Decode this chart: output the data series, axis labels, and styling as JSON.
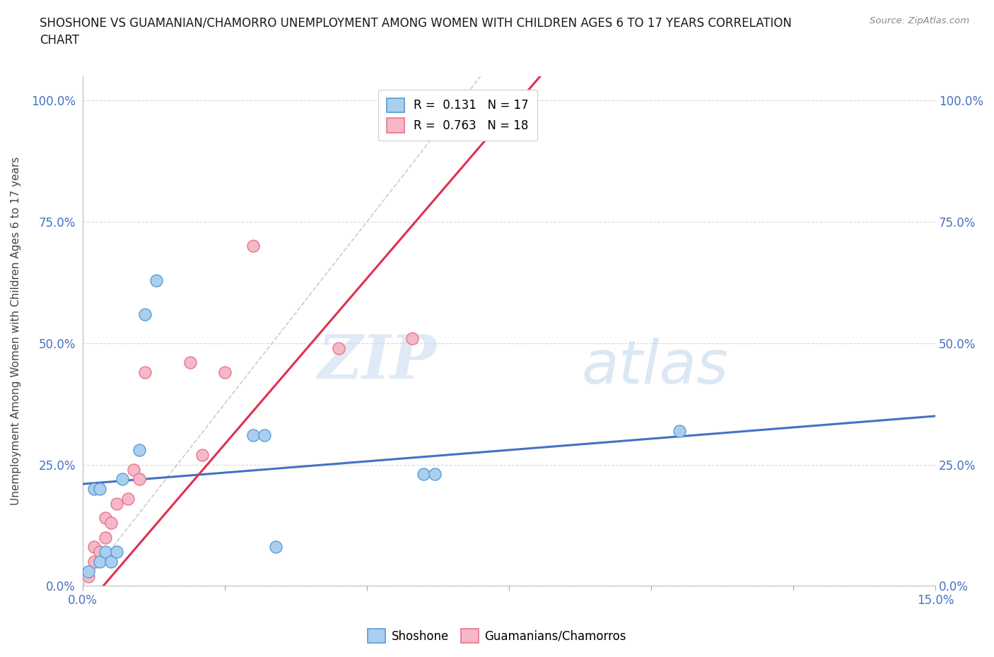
{
  "title": "SHOSHONE VS GUAMANIAN/CHAMORRO UNEMPLOYMENT AMONG WOMEN WITH CHILDREN AGES 6 TO 17 YEARS CORRELATION\nCHART",
  "source": "Source: ZipAtlas.com",
  "ylabel": "Unemployment Among Women with Children Ages 6 to 17 years",
  "xlim": [
    0.0,
    0.15
  ],
  "ylim": [
    0.0,
    1.05
  ],
  "x_ticks": [
    0.0,
    0.025,
    0.05,
    0.075,
    0.1,
    0.125,
    0.15
  ],
  "x_tick_labels": [
    "0.0%",
    "",
    "",
    "",
    "",
    "",
    "15.0%"
  ],
  "y_ticks": [
    0.0,
    0.25,
    0.5,
    0.75,
    1.0
  ],
  "y_tick_labels": [
    "0.0%",
    "25.0%",
    "50.0%",
    "75.0%",
    "100.0%"
  ],
  "shoshone_x": [
    0.001,
    0.002,
    0.003,
    0.003,
    0.004,
    0.005,
    0.006,
    0.007,
    0.01,
    0.011,
    0.013,
    0.03,
    0.032,
    0.034,
    0.06,
    0.062,
    0.105
  ],
  "shoshone_y": [
    0.03,
    0.2,
    0.05,
    0.2,
    0.07,
    0.05,
    0.07,
    0.22,
    0.28,
    0.56,
    0.63,
    0.31,
    0.31,
    0.08,
    0.23,
    0.23,
    0.32
  ],
  "guamanian_x": [
    0.001,
    0.002,
    0.002,
    0.003,
    0.004,
    0.004,
    0.005,
    0.006,
    0.008,
    0.009,
    0.01,
    0.011,
    0.019,
    0.021,
    0.025,
    0.03,
    0.045,
    0.058
  ],
  "guamanian_y": [
    0.02,
    0.05,
    0.08,
    0.07,
    0.1,
    0.14,
    0.13,
    0.17,
    0.18,
    0.24,
    0.22,
    0.44,
    0.46,
    0.27,
    0.44,
    0.7,
    0.49,
    0.51
  ],
  "shoshone_color": "#aacfee",
  "shoshone_edge_color": "#5b9bd5",
  "guamanian_color": "#f5b8c8",
  "guamanian_edge_color": "#e8748a",
  "shoshone_line_color": "#4472c4",
  "guamanian_line_color": "#e03050",
  "diagonal_color": "#cccccc",
  "R_shoshone": 0.131,
  "N_shoshone": 17,
  "R_guamanian": 0.763,
  "N_guamanian": 18,
  "watermark_zip": "ZIP",
  "watermark_atlas": "atlas",
  "marker_size": 150,
  "background_color": "#ffffff",
  "grid_color": "#d8d8d8"
}
